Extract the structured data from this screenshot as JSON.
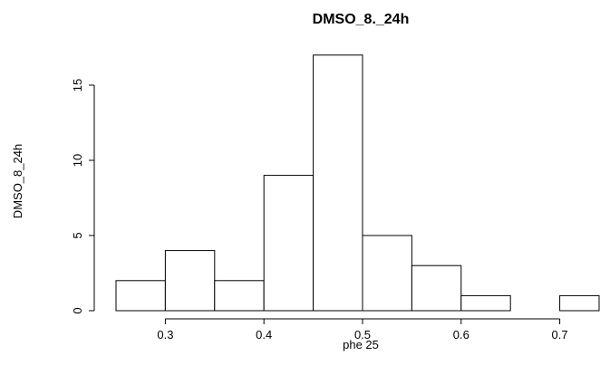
{
  "chart_data": {
    "type": "bar",
    "title": "DMSO_8._24h",
    "xlabel": "phe 25",
    "ylabel": "DMSO_8_24h",
    "bins": [
      {
        "from": 0.25,
        "to": 0.3,
        "count": 2
      },
      {
        "from": 0.3,
        "to": 0.35,
        "count": 4
      },
      {
        "from": 0.35,
        "to": 0.4,
        "count": 2
      },
      {
        "from": 0.4,
        "to": 0.45,
        "count": 9
      },
      {
        "from": 0.45,
        "to": 0.5,
        "count": 17
      },
      {
        "from": 0.5,
        "to": 0.55,
        "count": 5
      },
      {
        "from": 0.55,
        "to": 0.6,
        "count": 3
      },
      {
        "from": 0.6,
        "to": 0.65,
        "count": 1
      },
      {
        "from": 0.65,
        "to": 0.7,
        "count": 0
      },
      {
        "from": 0.7,
        "to": 0.75,
        "count": 1
      }
    ],
    "x_ticks": [
      "0.3",
      "0.4",
      "0.5",
      "0.6",
      "0.7"
    ],
    "y_ticks": [
      "0",
      "5",
      "10",
      "15"
    ],
    "xlim": [
      0.25,
      0.75
    ],
    "ylim": [
      0,
      17
    ],
    "grid": false,
    "bar_fill": "#ffffff",
    "bar_stroke": "#000000"
  }
}
